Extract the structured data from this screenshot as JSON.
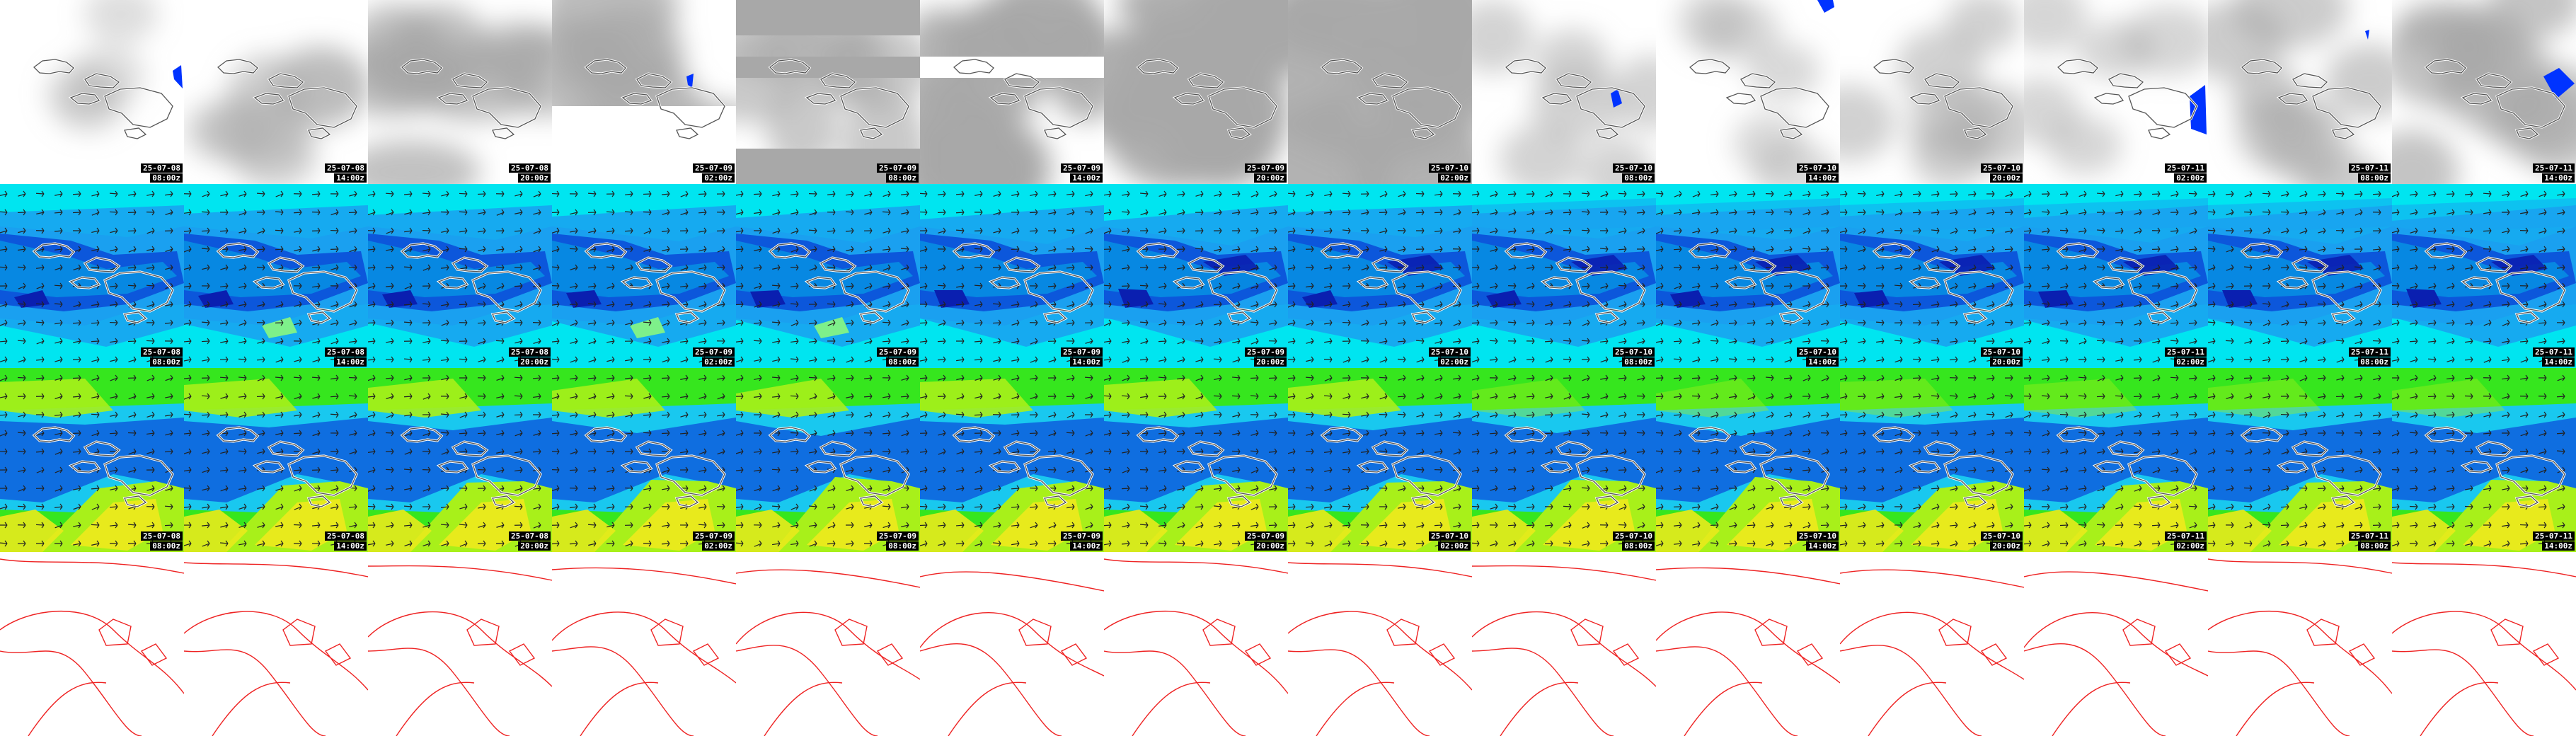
{
  "panel_rows": [
    {
      "id": "cloud",
      "name": "cloud-cover",
      "show_stamp": true
    },
    {
      "id": "wind",
      "name": "wind-speed",
      "show_stamp": true
    },
    {
      "id": "wave",
      "name": "wave-height",
      "show_stamp": true
    },
    {
      "id": "pressure",
      "name": "sea-level-pressure",
      "show_stamp": false
    }
  ],
  "timesteps": [
    {
      "date": "25-07-08",
      "time": "08:00z"
    },
    {
      "date": "25-07-08",
      "time": "14:00z"
    },
    {
      "date": "25-07-08",
      "time": "20:00z"
    },
    {
      "date": "25-07-09",
      "time": "02:00z"
    },
    {
      "date": "25-07-09",
      "time": "08:00z"
    },
    {
      "date": "25-07-09",
      "time": "14:00z"
    },
    {
      "date": "25-07-09",
      "time": "20:00z"
    },
    {
      "date": "25-07-10",
      "time": "02:00z"
    },
    {
      "date": "25-07-10",
      "time": "08:00z"
    },
    {
      "date": "25-07-10",
      "time": "14:00z"
    },
    {
      "date": "25-07-10",
      "time": "20:00z"
    },
    {
      "date": "25-07-11",
      "time": "02:00z"
    },
    {
      "date": "25-07-11",
      "time": "08:00z"
    },
    {
      "date": "25-07-11",
      "time": "14:00z"
    }
  ],
  "colors": {
    "land_outline": "#555555",
    "cloud_bg": "#ffffff",
    "cloud_grey": "#a8a8a8",
    "cloud_blue": "#0033ff",
    "wind_bg": "#00e5f0",
    "wind_mid": "#1aa0f0",
    "wind_strong": "#0b4fd8",
    "wind_max": "#0a1fb0",
    "wind_light": "#7ef08a",
    "wave_bg": "#36e61e",
    "wave_blue": "#0f6ee0",
    "wave_cyan": "#19c8ef",
    "wave_yellow": "#e8ea1c",
    "wave_lime": "#a8f01a",
    "pressure_line": "#ee2222",
    "stamp_bg": "#000000",
    "stamp_fg": "#ffffff"
  }
}
